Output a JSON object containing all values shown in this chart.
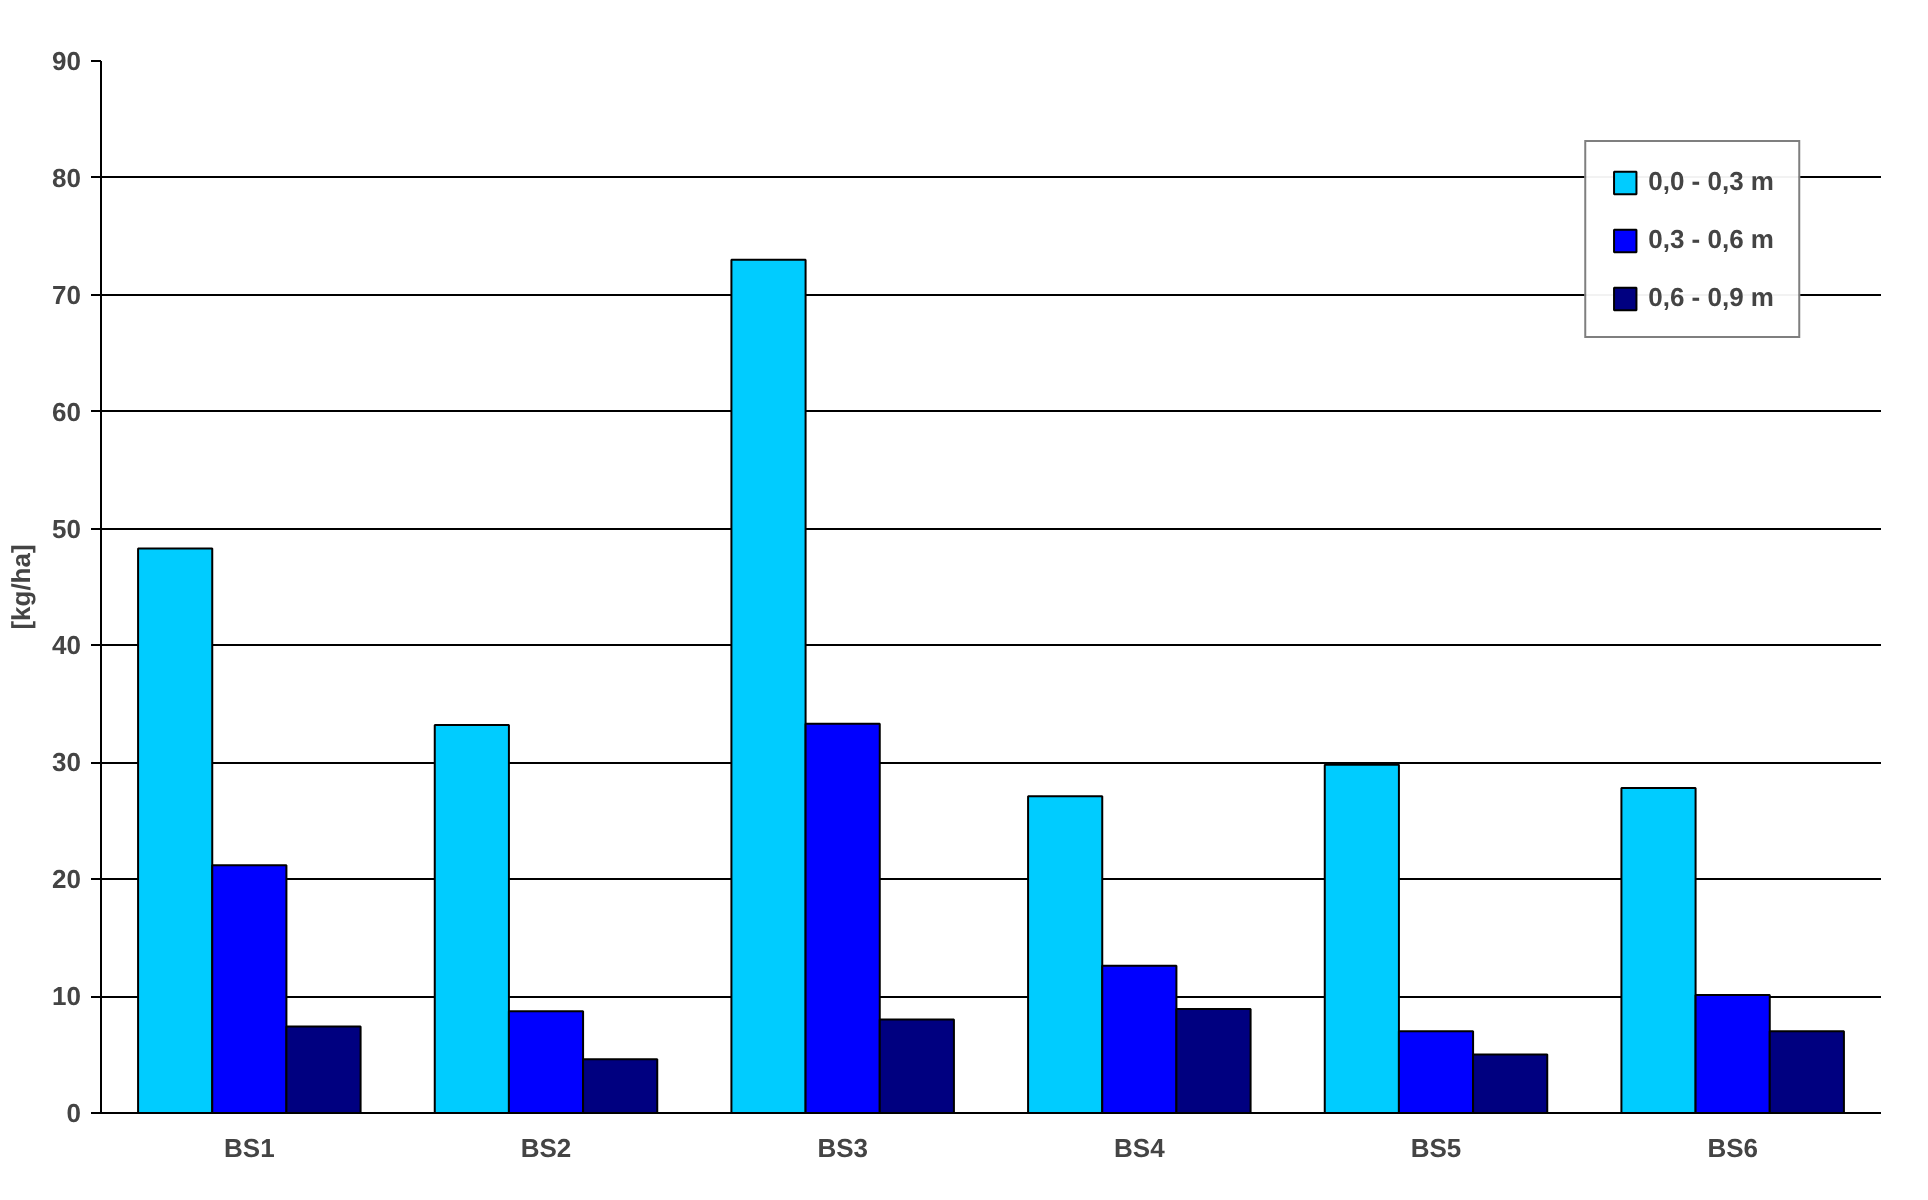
{
  "chart_data": {
    "type": "bar",
    "ylabel": "[kg/ha]",
    "categories": [
      "BS1",
      "BS2",
      "BS3",
      "BS4",
      "BS5",
      "BS6"
    ],
    "series": [
      {
        "name": "0,0 - 0,3 m",
        "color": "#00ccff",
        "values": [
          48.3,
          33.2,
          73.0,
          27.1,
          29.8,
          27.8
        ]
      },
      {
        "name": "0,3 - 0,6 m",
        "color": "#0000ff",
        "values": [
          21.2,
          8.7,
          33.3,
          12.6,
          7.0,
          10.1
        ]
      },
      {
        "name": "0,6 - 0,9 m",
        "color": "#000080",
        "values": [
          7.4,
          4.6,
          8.0,
          8.9,
          5.0,
          7.0
        ]
      }
    ],
    "ylim": [
      0,
      90
    ],
    "yticks": [
      0,
      10,
      20,
      30,
      40,
      50,
      60,
      70,
      80,
      90
    ],
    "grid": "y",
    "legend": "top right"
  }
}
